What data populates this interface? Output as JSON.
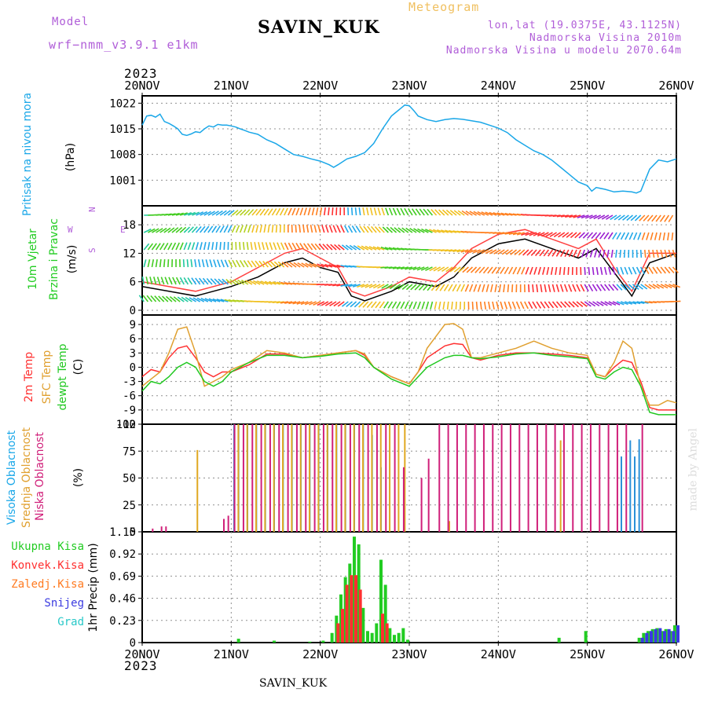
{
  "header": {
    "model_label": "Model",
    "model_value": "wrf−nmm_v3.9.1  e1km",
    "title": "SAVIN_KUK",
    "meteogram_label": "Meteogram",
    "lonlat": "lon,lat (19.0375E, 43.1125N)",
    "elevation": "Nadmorska Visina 2010m",
    "elevation_model": "Nadmorska Visina u modelu 2070.64m",
    "colors": {
      "purple": "#b05ed8",
      "gold": "#f0c060"
    }
  },
  "footer": {
    "title": "SAVIN_KUK",
    "credit": "made by Angel"
  },
  "time_axis": {
    "year": "2023",
    "ticks": [
      "20NOV",
      "21NOV",
      "22NOV",
      "23NOV",
      "24NOV",
      "25NOV",
      "26NOV"
    ]
  },
  "chart_data": [
    {
      "type": "line",
      "panel": "pressure",
      "ylabel": "Pritisak na nivou mora",
      "unit": "(hPa)",
      "ylim": [
        994,
        1024
      ],
      "yticks": [
        "1001",
        "1008",
        "1015",
        "1022"
      ],
      "yvals": [
        1001,
        1008,
        1015,
        1022
      ],
      "grid": true,
      "series": [
        {
          "color": "#1aa7e8",
          "x": [
            0,
            0.05,
            0.1,
            0.15,
            0.2,
            0.25,
            0.3,
            0.35,
            0.4,
            0.45,
            0.5,
            0.55,
            0.6,
            0.65,
            0.7,
            0.75,
            0.8,
            0.85,
            0.9,
            0.95,
            1.0,
            1.05,
            1.1,
            1.15,
            1.2,
            1.3,
            1.4,
            1.5,
            1.6,
            1.7,
            1.8,
            1.9,
            2.0,
            2.1,
            2.15,
            2.2,
            2.3,
            2.4,
            2.5,
            2.6,
            2.7,
            2.8,
            2.9,
            2.95,
            3.0,
            3.05,
            3.1,
            3.2,
            3.3,
            3.4,
            3.5,
            3.6,
            3.7,
            3.8,
            3.9,
            4.0,
            4.1,
            4.2,
            4.3,
            4.4,
            4.5,
            4.6,
            4.7,
            4.8,
            4.9,
            5.0,
            5.05,
            5.1,
            5.2,
            5.3,
            5.4,
            5.5,
            5.55,
            5.6,
            5.7,
            5.8,
            5.9,
            6.0
          ],
          "y": [
            1016,
            1018.5,
            1018.7,
            1018.2,
            1019,
            1017,
            1016.5,
            1015.8,
            1015,
            1013.5,
            1013.2,
            1013.6,
            1014.2,
            1014,
            1015,
            1015.8,
            1015.5,
            1016.2,
            1016,
            1016,
            1015.8,
            1015.5,
            1015,
            1014.6,
            1014.1,
            1013.5,
            1012,
            1011,
            1009.5,
            1008,
            1007.5,
            1006.8,
            1006.2,
            1005.2,
            1004.5,
            1005.2,
            1006.8,
            1007.5,
            1008.5,
            1011,
            1015,
            1018.5,
            1020.5,
            1021.5,
            1021.3,
            1020,
            1018.5,
            1017.5,
            1017,
            1017.5,
            1017.8,
            1017.6,
            1017.2,
            1016.8,
            1016,
            1015.2,
            1014,
            1012,
            1010.5,
            1009,
            1008,
            1006.5,
            1004.5,
            1002.5,
            1000.5,
            999.5,
            998,
            999,
            998.5,
            997.8,
            998,
            997.8,
            997.5,
            998,
            1004,
            1006.5,
            1006,
            1006.8
          ]
        }
      ]
    },
    {
      "type": "line",
      "panel": "wind",
      "ylabel": "10m Vjetar Brzina i Pravac",
      "unit": "(m/s)",
      "compass": {
        "n": "N",
        "e": "E",
        "s": "S",
        "w": "W"
      },
      "ylim": [
        -1,
        22
      ],
      "yticks": [
        "0",
        "6",
        "12",
        "18"
      ],
      "yvals": [
        0,
        6,
        12,
        18
      ],
      "grid": true,
      "series": [
        {
          "color": "#000000",
          "x": [
            0,
            0.3,
            0.6,
            1.0,
            1.3,
            1.6,
            1.8,
            2.0,
            2.2,
            2.35,
            2.5,
            2.8,
            3.0,
            3.3,
            3.5,
            3.7,
            4.0,
            4.3,
            4.6,
            4.9,
            5.1,
            5.3,
            5.5,
            5.7,
            6.0
          ],
          "y": [
            5,
            4,
            3,
            5,
            7,
            10,
            11,
            9,
            8,
            3,
            2,
            4,
            6,
            5,
            7,
            11,
            14,
            15,
            13,
            11,
            13,
            8,
            3,
            10,
            12
          ]
        },
        {
          "color": "#ff4040",
          "x": [
            0,
            0.3,
            0.6,
            1.0,
            1.3,
            1.6,
            1.8,
            2.0,
            2.2,
            2.35,
            2.5,
            2.8,
            3.0,
            3.3,
            3.5,
            3.7,
            4.0,
            4.3,
            4.6,
            4.9,
            5.1,
            5.3,
            5.5,
            5.7,
            6.0
          ],
          "y": [
            6,
            5,
            4,
            6,
            9,
            12,
            13,
            11,
            9,
            4,
            3,
            5,
            7,
            6,
            9,
            13,
            16,
            17,
            15,
            13,
            15,
            9,
            4,
            12,
            12
          ]
        }
      ]
    },
    {
      "type": "line",
      "panel": "temperature",
      "ylabel": [
        "2m Temp",
        "SFC Temp",
        "dewpt Temp"
      ],
      "unit": "(C)",
      "ylim": [
        -12,
        11
      ],
      "yticks": [
        "-12",
        "-9",
        "-6",
        "-3",
        "0",
        "3",
        "6",
        "9"
      ],
      "yvals": [
        -12,
        -9,
        -6,
        -3,
        0,
        3,
        6,
        9
      ],
      "grid": true,
      "series": [
        {
          "name": "2m Temp",
          "color": "#ff3030",
          "x": [
            0,
            0.1,
            0.2,
            0.3,
            0.4,
            0.5,
            0.6,
            0.7,
            0.8,
            0.9,
            1.0,
            1.2,
            1.4,
            1.6,
            1.8,
            2.0,
            2.2,
            2.4,
            2.5,
            2.6,
            2.8,
            3.0,
            3.1,
            3.2,
            3.4,
            3.5,
            3.6,
            3.7,
            3.8,
            4.0,
            4.2,
            4.4,
            4.6,
            4.8,
            5.0,
            5.1,
            5.2,
            5.3,
            5.4,
            5.5,
            5.6,
            5.7,
            5.8,
            5.9,
            6.0
          ],
          "y": [
            -2,
            -0.5,
            -1,
            2,
            4,
            4.5,
            2,
            -1,
            -2,
            -1,
            -1,
            0.5,
            2.8,
            2.8,
            2,
            2.5,
            3,
            3.5,
            2.5,
            0,
            -2,
            -3.5,
            -1,
            2,
            4.5,
            5,
            4.8,
            2,
            1.5,
            2.5,
            3,
            3,
            2.8,
            2.5,
            2,
            -1.5,
            -2,
            0,
            1.5,
            1,
            -3,
            -8.5,
            -9,
            -9,
            -9
          ]
        },
        {
          "name": "SFC Temp",
          "color": "#e0a030",
          "x": [
            0,
            0.1,
            0.2,
            0.3,
            0.4,
            0.5,
            0.6,
            0.7,
            0.8,
            0.9,
            1.0,
            1.2,
            1.4,
            1.6,
            1.8,
            2.0,
            2.2,
            2.4,
            2.5,
            2.6,
            2.8,
            3.0,
            3.1,
            3.2,
            3.4,
            3.5,
            3.6,
            3.7,
            3.8,
            4.0,
            4.2,
            4.4,
            4.6,
            4.8,
            5.0,
            5.1,
            5.2,
            5.3,
            5.4,
            5.5,
            5.6,
            5.7,
            5.8,
            5.9,
            6.0
          ],
          "y": [
            -4,
            -2.5,
            -1,
            3,
            8,
            8.5,
            3,
            -4,
            -3,
            -2,
            -0.5,
            1,
            3.5,
            3,
            2,
            2.5,
            3,
            3.5,
            2.8,
            0,
            -2,
            -3.5,
            -1,
            4,
            9,
            9.2,
            8,
            2,
            2,
            3,
            4,
            5.5,
            4,
            3,
            2.5,
            -1.5,
            -2,
            1,
            5.5,
            4,
            -4,
            -8,
            -8,
            -7,
            -7.5
          ]
        },
        {
          "name": "dewpt Temp",
          "color": "#20c820",
          "x": [
            0,
            0.1,
            0.2,
            0.3,
            0.4,
            0.5,
            0.6,
            0.7,
            0.8,
            0.9,
            1.0,
            1.2,
            1.4,
            1.6,
            1.8,
            2.0,
            2.2,
            2.4,
            2.5,
            2.6,
            2.8,
            3.0,
            3.1,
            3.2,
            3.4,
            3.5,
            3.6,
            3.7,
            3.8,
            4.0,
            4.2,
            4.4,
            4.6,
            4.8,
            5.0,
            5.1,
            5.2,
            5.3,
            5.4,
            5.5,
            5.6,
            5.7,
            5.8,
            5.9,
            6.0
          ],
          "y": [
            -5,
            -3,
            -3.5,
            -2,
            0,
            1,
            0,
            -3,
            -4,
            -3,
            -1,
            1,
            2.5,
            2.5,
            2,
            2.3,
            2.8,
            3,
            2,
            0,
            -2.5,
            -4,
            -2,
            0,
            2,
            2.5,
            2.5,
            2,
            1.8,
            2.2,
            2.8,
            3,
            2.5,
            2.2,
            1.8,
            -2,
            -2.5,
            -1,
            0,
            -0.5,
            -4,
            -9.5,
            -10,
            -10,
            -10
          ]
        }
      ]
    },
    {
      "type": "bar",
      "panel": "cloud",
      "ylabel": [
        "Visoka Oblacnost",
        "Srednja Oblacnost",
        "Niska Oblacnost"
      ],
      "unit": "(%)",
      "ylim": [
        0,
        100
      ],
      "yticks": [
        "0",
        "25",
        "50",
        "75",
        "100"
      ],
      "yvals": [
        0,
        25,
        50,
        75,
        100
      ],
      "grid": true,
      "series": [
        {
          "name": "Visoka Oblacnost",
          "color": "#2a90d8",
          "x": [
            1.05,
            1.1,
            1.2,
            1.3,
            1.4,
            1.5,
            1.6,
            1.7,
            1.8,
            1.9,
            2.0,
            2.1,
            2.2,
            2.3,
            2.4,
            2.5,
            2.6,
            2.7,
            5.4,
            5.5,
            5.55,
            5.6
          ],
          "y": [
            100,
            100,
            100,
            100,
            100,
            100,
            100,
            100,
            100,
            100,
            100,
            100,
            100,
            100,
            100,
            100,
            90,
            60,
            70,
            85,
            70,
            86
          ]
        },
        {
          "name": "Srednja Oblacnost",
          "color": "#e0a820",
          "x": [
            0.62,
            1.08,
            1.18,
            1.28,
            1.38,
            1.48,
            1.58,
            1.68,
            1.78,
            1.88,
            1.98,
            2.08,
            2.18,
            2.28,
            2.38,
            2.48,
            2.58,
            2.68,
            2.78,
            2.88,
            2.95,
            3.45,
            4.7
          ],
          "y": [
            76,
            100,
            100,
            100,
            100,
            100,
            100,
            100,
            100,
            100,
            100,
            100,
            100,
            100,
            100,
            100,
            100,
            100,
            100,
            100,
            100,
            10,
            85
          ]
        },
        {
          "name": "Niska Oblacnost",
          "color": "#d0207a",
          "x": [
            0.1,
            0.2,
            0.25,
            0.9,
            0.95,
            1.02,
            1.12,
            1.22,
            1.32,
            1.42,
            1.52,
            1.62,
            1.72,
            1.82,
            1.92,
            2.02,
            2.12,
            2.22,
            2.32,
            2.42,
            2.52,
            2.62,
            2.72,
            2.82,
            2.92,
            3.12,
            3.2,
            3.32,
            3.42,
            3.52,
            3.62,
            3.72,
            3.82,
            3.92,
            4.02,
            4.12,
            4.22,
            4.32,
            4.42,
            4.52,
            4.62,
            4.72,
            4.82,
            4.92,
            5.02,
            5.12,
            5.22,
            5.32,
            5.42,
            5.6
          ],
          "y": [
            3,
            5,
            5,
            12,
            15,
            100,
            100,
            100,
            100,
            100,
            100,
            100,
            100,
            100,
            100,
            100,
            100,
            100,
            100,
            100,
            100,
            100,
            100,
            100,
            60,
            50,
            68,
            100,
            100,
            100,
            100,
            100,
            100,
            100,
            100,
            100,
            100,
            100,
            100,
            100,
            100,
            100,
            100,
            100,
            100,
            100,
            100,
            100,
            100,
            100
          ]
        }
      ]
    },
    {
      "type": "bar",
      "panel": "precip",
      "ylabel": "1hr Precip (mm)",
      "legend": [
        "Ukupna Kisa",
        "Konvek.Kisa",
        "Zaledj.Kisa",
        "Snijeg",
        "Grad"
      ],
      "legend_colors": [
        "#22cc22",
        "#ff3030",
        "#ff7a20",
        "#3a3ae0",
        "#28c8c8"
      ],
      "ylim": [
        0,
        1.15
      ],
      "yticks": [
        "0",
        "0.23",
        "0.46",
        "0.69",
        "0.92",
        "1.15"
      ],
      "yvals": [
        0,
        0.23,
        0.46,
        0.69,
        0.92,
        1.15
      ],
      "grid": true,
      "series": [
        {
          "name": "Ukupna Kisa",
          "color": "#22cc22",
          "x": [
            1.1,
            1.5,
            1.9,
            2.05,
            2.15,
            2.2,
            2.25,
            2.3,
            2.35,
            2.4,
            2.45,
            2.5,
            2.55,
            2.6,
            2.65,
            2.7,
            2.75,
            2.8,
            2.85,
            2.9,
            2.95,
            3.0,
            4.7,
            5.0,
            5.6,
            5.65,
            5.7,
            5.75,
            5.8,
            5.85,
            5.9,
            5.95,
            6.0
          ],
          "y": [
            0.04,
            0.02,
            0.01,
            0.02,
            0.1,
            0.28,
            0.5,
            0.68,
            0.82,
            1.1,
            1.02,
            0.36,
            0.12,
            0.1,
            0.2,
            0.86,
            0.6,
            0.15,
            0.08,
            0.1,
            0.15,
            0.03,
            0.05,
            0.12,
            0.05,
            0.1,
            0.12,
            0.14,
            0.15,
            0.12,
            0.14,
            0.12,
            0.18
          ]
        },
        {
          "name": "Konvek.Kisa",
          "color": "#ff3030",
          "x": [
            2.2,
            2.25,
            2.3,
            2.35,
            2.4,
            2.45,
            2.7,
            2.75
          ],
          "y": [
            0.2,
            0.35,
            0.6,
            0.7,
            0.7,
            0.55,
            0.3,
            0.2
          ]
        },
        {
          "name": "Snijeg",
          "color": "#3a3ae0",
          "x": [
            5.6,
            5.65,
            5.7,
            5.75,
            5.8,
            5.85,
            5.9,
            5.95,
            6.0
          ],
          "y": [
            0.05,
            0.1,
            0.12,
            0.14,
            0.15,
            0.12,
            0.14,
            0.12,
            0.18
          ]
        }
      ]
    }
  ]
}
